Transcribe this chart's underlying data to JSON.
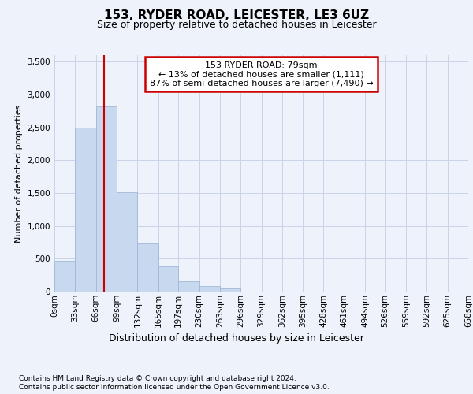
{
  "title": "153, RYDER ROAD, LEICESTER, LE3 6UZ",
  "subtitle": "Size of property relative to detached houses in Leicester",
  "xlabel": "Distribution of detached houses by size in Leicester",
  "ylabel": "Number of detached properties",
  "footnote1": "Contains HM Land Registry data © Crown copyright and database right 2024.",
  "footnote2": "Contains public sector information licensed under the Open Government Licence v3.0.",
  "annotation_title": "153 RYDER ROAD: 79sqm",
  "annotation_line1": "← 13% of detached houses are smaller (1,111)",
  "annotation_line2": "87% of semi-detached houses are larger (7,490) →",
  "bar_color": "#c8d8ee",
  "bar_edge_color": "#a0b8d8",
  "grid_color": "#c8d4e8",
  "marker_line_color": "#cc0000",
  "annotation_box_color": "#ffffff",
  "annotation_box_edge": "#cc0000",
  "bin_edges": [
    0,
    33,
    66,
    99,
    132,
    165,
    197,
    230,
    263,
    296,
    329,
    362,
    395,
    428,
    461,
    494,
    526,
    559,
    592,
    625,
    658
  ],
  "bin_labels": [
    "0sqm",
    "33sqm",
    "66sqm",
    "99sqm",
    "132sqm",
    "165sqm",
    "197sqm",
    "230sqm",
    "263sqm",
    "296sqm",
    "329sqm",
    "362sqm",
    "395sqm",
    "428sqm",
    "461sqm",
    "494sqm",
    "526sqm",
    "559sqm",
    "592sqm",
    "625sqm",
    "658sqm"
  ],
  "bar_heights": [
    465,
    2500,
    2820,
    1510,
    730,
    385,
    155,
    80,
    50,
    5,
    2,
    0,
    0,
    0,
    0,
    0,
    0,
    0,
    0,
    0
  ],
  "ylim": [
    0,
    3600
  ],
  "yticks": [
    0,
    500,
    1000,
    1500,
    2000,
    2500,
    3000,
    3500
  ],
  "property_size": 79,
  "bg_color": "#eef2fa",
  "plot_bg_color": "#eef2fa",
  "title_fontsize": 11,
  "subtitle_fontsize": 9,
  "ylabel_fontsize": 8,
  "xlabel_fontsize": 9,
  "tick_fontsize": 7.5,
  "footnote_fontsize": 6.5,
  "annotation_fontsize": 8
}
